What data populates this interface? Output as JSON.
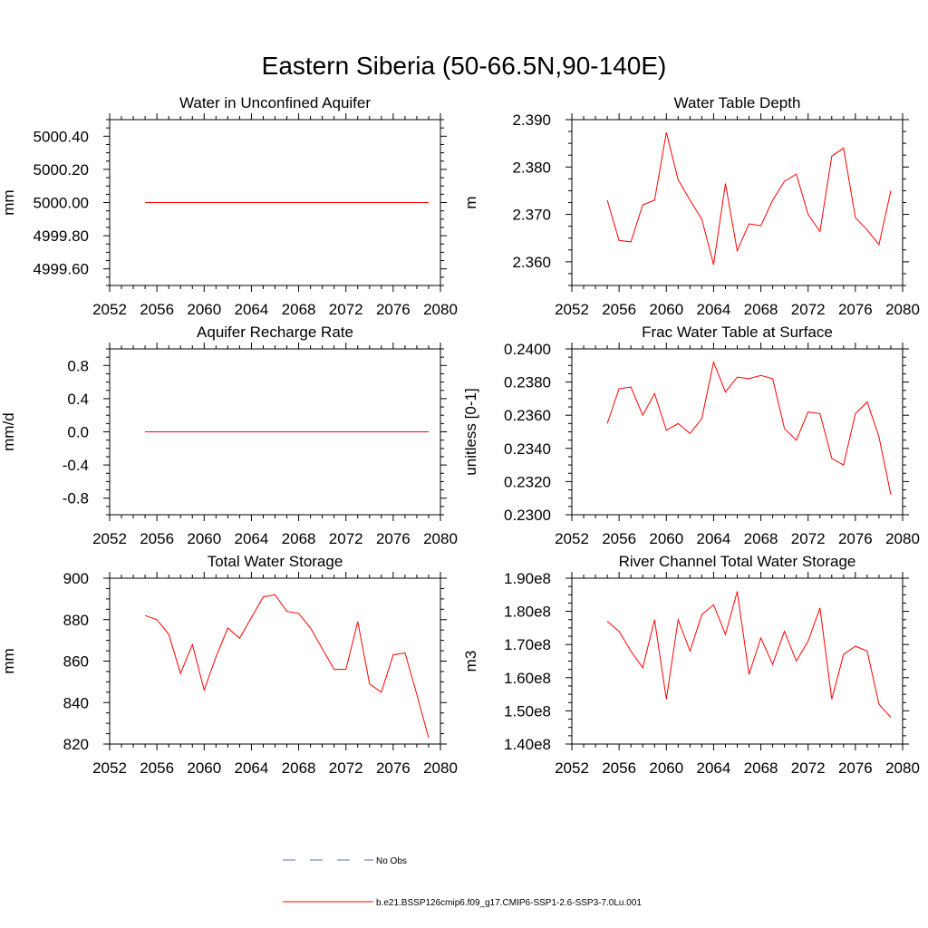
{
  "figure_title": "Eastern Siberia (50-66.5N,90-140E)",
  "legend": {
    "entries": [
      {
        "label": "No Obs",
        "style": "dashed",
        "color": "#5b6fb5"
      },
      {
        "label": "b.e21.BSSP126cmip6.f09_g17.CMIP6-SSP1-2.6-SSP3-7.0Lu.001",
        "style": "solid",
        "color": "#ff0000"
      }
    ]
  },
  "colors": {
    "series": "#ff0000",
    "axes": "#000000",
    "obs": "#5b6fb5"
  },
  "chart_data": [
    {
      "type": "line",
      "title": "Water in Unconfined Aquifer",
      "xlabel": "",
      "ylabel": "mm",
      "xlim": [
        2052,
        2080
      ],
      "ylim": [
        4999.5,
        5000.5
      ],
      "xticks": [
        2052,
        2056,
        2060,
        2064,
        2068,
        2072,
        2076,
        2080
      ],
      "xtick_labels": [
        "2052",
        "2056",
        "2060",
        "2064",
        "2068",
        "2072",
        "2076",
        "2080"
      ],
      "yticks": [
        4999.6,
        4999.8,
        5000.0,
        5000.2,
        5000.4
      ],
      "ytick_labels": [
        "4999.60",
        "4999.80",
        "5000.00",
        "5000.20",
        "5000.40"
      ],
      "series": [
        {
          "x": [
            2055,
            2056,
            2057,
            2058,
            2059,
            2060,
            2061,
            2062,
            2063,
            2064,
            2065,
            2066,
            2067,
            2068,
            2069,
            2070,
            2071,
            2072,
            2073,
            2074,
            2075,
            2076,
            2077,
            2078,
            2079
          ],
          "values": [
            5000,
            5000,
            5000,
            5000,
            5000,
            5000,
            5000,
            5000,
            5000,
            5000,
            5000,
            5000,
            5000,
            5000,
            5000,
            5000,
            5000,
            5000,
            5000,
            5000,
            5000,
            5000,
            5000,
            5000,
            5000
          ]
        }
      ]
    },
    {
      "type": "line",
      "title": "Water Table Depth",
      "xlabel": "",
      "ylabel": "m",
      "xlim": [
        2052,
        2080
      ],
      "ylim": [
        2.355,
        2.39
      ],
      "xticks": [
        2052,
        2056,
        2060,
        2064,
        2068,
        2072,
        2076,
        2080
      ],
      "xtick_labels": [
        "2052",
        "2056",
        "2060",
        "2064",
        "2068",
        "2072",
        "2076",
        "2080"
      ],
      "yticks": [
        2.36,
        2.37,
        2.38,
        2.39
      ],
      "ytick_labels": [
        "2.360",
        "2.370",
        "2.380",
        "2.390"
      ],
      "series": [
        {
          "x": [
            2055,
            2056,
            2057,
            2058,
            2059,
            2060,
            2061,
            2062,
            2063,
            2064,
            2065,
            2066,
            2067,
            2068,
            2069,
            2070,
            2071,
            2072,
            2073,
            2074,
            2075,
            2076,
            2077,
            2078,
            2079
          ],
          "values": [
            2.373,
            2.3645,
            2.3642,
            2.372,
            2.373,
            2.3873,
            2.3773,
            2.373,
            2.369,
            2.3594,
            2.3765,
            2.3623,
            2.368,
            2.3676,
            2.373,
            2.377,
            2.3785,
            2.37,
            2.3664,
            2.3823,
            2.384,
            2.3693,
            2.3667,
            2.3636,
            2.375
          ]
        }
      ]
    },
    {
      "type": "line",
      "title": "Aquifer Recharge Rate",
      "xlabel": "",
      "ylabel": "mm/d",
      "xlim": [
        2052,
        2080
      ],
      "ylim": [
        -1.0,
        1.0
      ],
      "xticks": [
        2052,
        2056,
        2060,
        2064,
        2068,
        2072,
        2076,
        2080
      ],
      "xtick_labels": [
        "2052",
        "2056",
        "2060",
        "2064",
        "2068",
        "2072",
        "2076",
        "2080"
      ],
      "yticks": [
        -0.8,
        -0.4,
        0.0,
        0.4,
        0.8
      ],
      "ytick_labels": [
        "-0.8",
        "-0.4",
        "0.0",
        "0.4",
        "0.8"
      ],
      "series": [
        {
          "x": [
            2055,
            2056,
            2057,
            2058,
            2059,
            2060,
            2061,
            2062,
            2063,
            2064,
            2065,
            2066,
            2067,
            2068,
            2069,
            2070,
            2071,
            2072,
            2073,
            2074,
            2075,
            2076,
            2077,
            2078,
            2079
          ],
          "values": [
            0,
            0,
            0,
            0,
            0,
            0,
            0,
            0,
            0,
            0,
            0,
            0,
            0,
            0,
            0,
            0,
            0,
            0,
            0,
            0,
            0,
            0,
            0,
            0,
            0
          ]
        }
      ]
    },
    {
      "type": "line",
      "title": "Frac Water Table at Surface",
      "xlabel": "",
      "ylabel": "unitless [0-1]",
      "xlim": [
        2052,
        2080
      ],
      "ylim": [
        0.23,
        0.24
      ],
      "xticks": [
        2052,
        2056,
        2060,
        2064,
        2068,
        2072,
        2076,
        2080
      ],
      "xtick_labels": [
        "2052",
        "2056",
        "2060",
        "2064",
        "2068",
        "2072",
        "2076",
        "2080"
      ],
      "yticks": [
        0.23,
        0.232,
        0.234,
        0.236,
        0.238,
        0.24
      ],
      "ytick_labels": [
        "0.2300",
        "0.2320",
        "0.2340",
        "0.2360",
        "0.2380",
        "0.2400"
      ],
      "series": [
        {
          "x": [
            2055,
            2056,
            2057,
            2058,
            2059,
            2060,
            2061,
            2062,
            2063,
            2064,
            2065,
            2066,
            2067,
            2068,
            2069,
            2070,
            2071,
            2072,
            2073,
            2074,
            2075,
            2076,
            2077,
            2078,
            2079
          ],
          "values": [
            0.2355,
            0.2376,
            0.2377,
            0.236,
            0.2373,
            0.2351,
            0.2355,
            0.2349,
            0.2358,
            0.2392,
            0.2374,
            0.2383,
            0.2382,
            0.2384,
            0.2382,
            0.2352,
            0.2345,
            0.2362,
            0.2361,
            0.2334,
            0.233,
            0.2361,
            0.2368,
            0.2347,
            0.2312
          ]
        }
      ]
    },
    {
      "type": "line",
      "title": "Total Water Storage",
      "xlabel": "",
      "ylabel": "mm",
      "xlim": [
        2052,
        2080
      ],
      "ylim": [
        820,
        900
      ],
      "xticks": [
        2052,
        2056,
        2060,
        2064,
        2068,
        2072,
        2076,
        2080
      ],
      "xtick_labels": [
        "2052",
        "2056",
        "2060",
        "2064",
        "2068",
        "2072",
        "2076",
        "2080"
      ],
      "yticks": [
        820,
        840,
        860,
        880,
        900
      ],
      "ytick_labels": [
        "820",
        "840",
        "860",
        "880",
        "900"
      ],
      "series": [
        {
          "x": [
            2055,
            2056,
            2057,
            2058,
            2059,
            2060,
            2061,
            2062,
            2063,
            2064,
            2065,
            2066,
            2067,
            2068,
            2069,
            2070,
            2071,
            2072,
            2073,
            2074,
            2075,
            2076,
            2077,
            2078,
            2079
          ],
          "values": [
            882,
            880,
            873,
            854,
            868,
            846,
            862,
            876,
            871,
            881,
            891,
            892,
            884,
            883,
            876,
            866,
            856,
            856,
            879,
            849,
            845,
            863,
            864,
            844,
            823
          ]
        }
      ]
    },
    {
      "type": "line",
      "title": "River Channel Total Water Storage",
      "xlabel": "",
      "ylabel": "m3",
      "xlim": [
        2052,
        2080
      ],
      "ylim": [
        140000000,
        190000000
      ],
      "xticks": [
        2052,
        2056,
        2060,
        2064,
        2068,
        2072,
        2076,
        2080
      ],
      "xtick_labels": [
        "2052",
        "2056",
        "2060",
        "2064",
        "2068",
        "2072",
        "2076",
        "2080"
      ],
      "yticks": [
        140000000,
        150000000,
        160000000,
        170000000,
        180000000,
        190000000
      ],
      "ytick_labels": [
        "1.40e8",
        "1.50e8",
        "1.60e8",
        "1.70e8",
        "1.80e8",
        "1.90e8"
      ],
      "series": [
        {
          "x": [
            2055,
            2056,
            2057,
            2058,
            2059,
            2060,
            2061,
            2062,
            2063,
            2064,
            2065,
            2066,
            2067,
            2068,
            2069,
            2070,
            2071,
            2072,
            2073,
            2074,
            2075,
            2076,
            2077,
            2078,
            2079
          ],
          "values": [
            177000000,
            174000000,
            168000000,
            163000000,
            177500000,
            153500000,
            177500000,
            168000000,
            179000000,
            182000000,
            173000000,
            186000000,
            161000000,
            172000000,
            164000000,
            174000000,
            165000000,
            171000000,
            181000000,
            153500000,
            167000000,
            169500000,
            168000000,
            152000000,
            148000000
          ]
        }
      ]
    }
  ]
}
